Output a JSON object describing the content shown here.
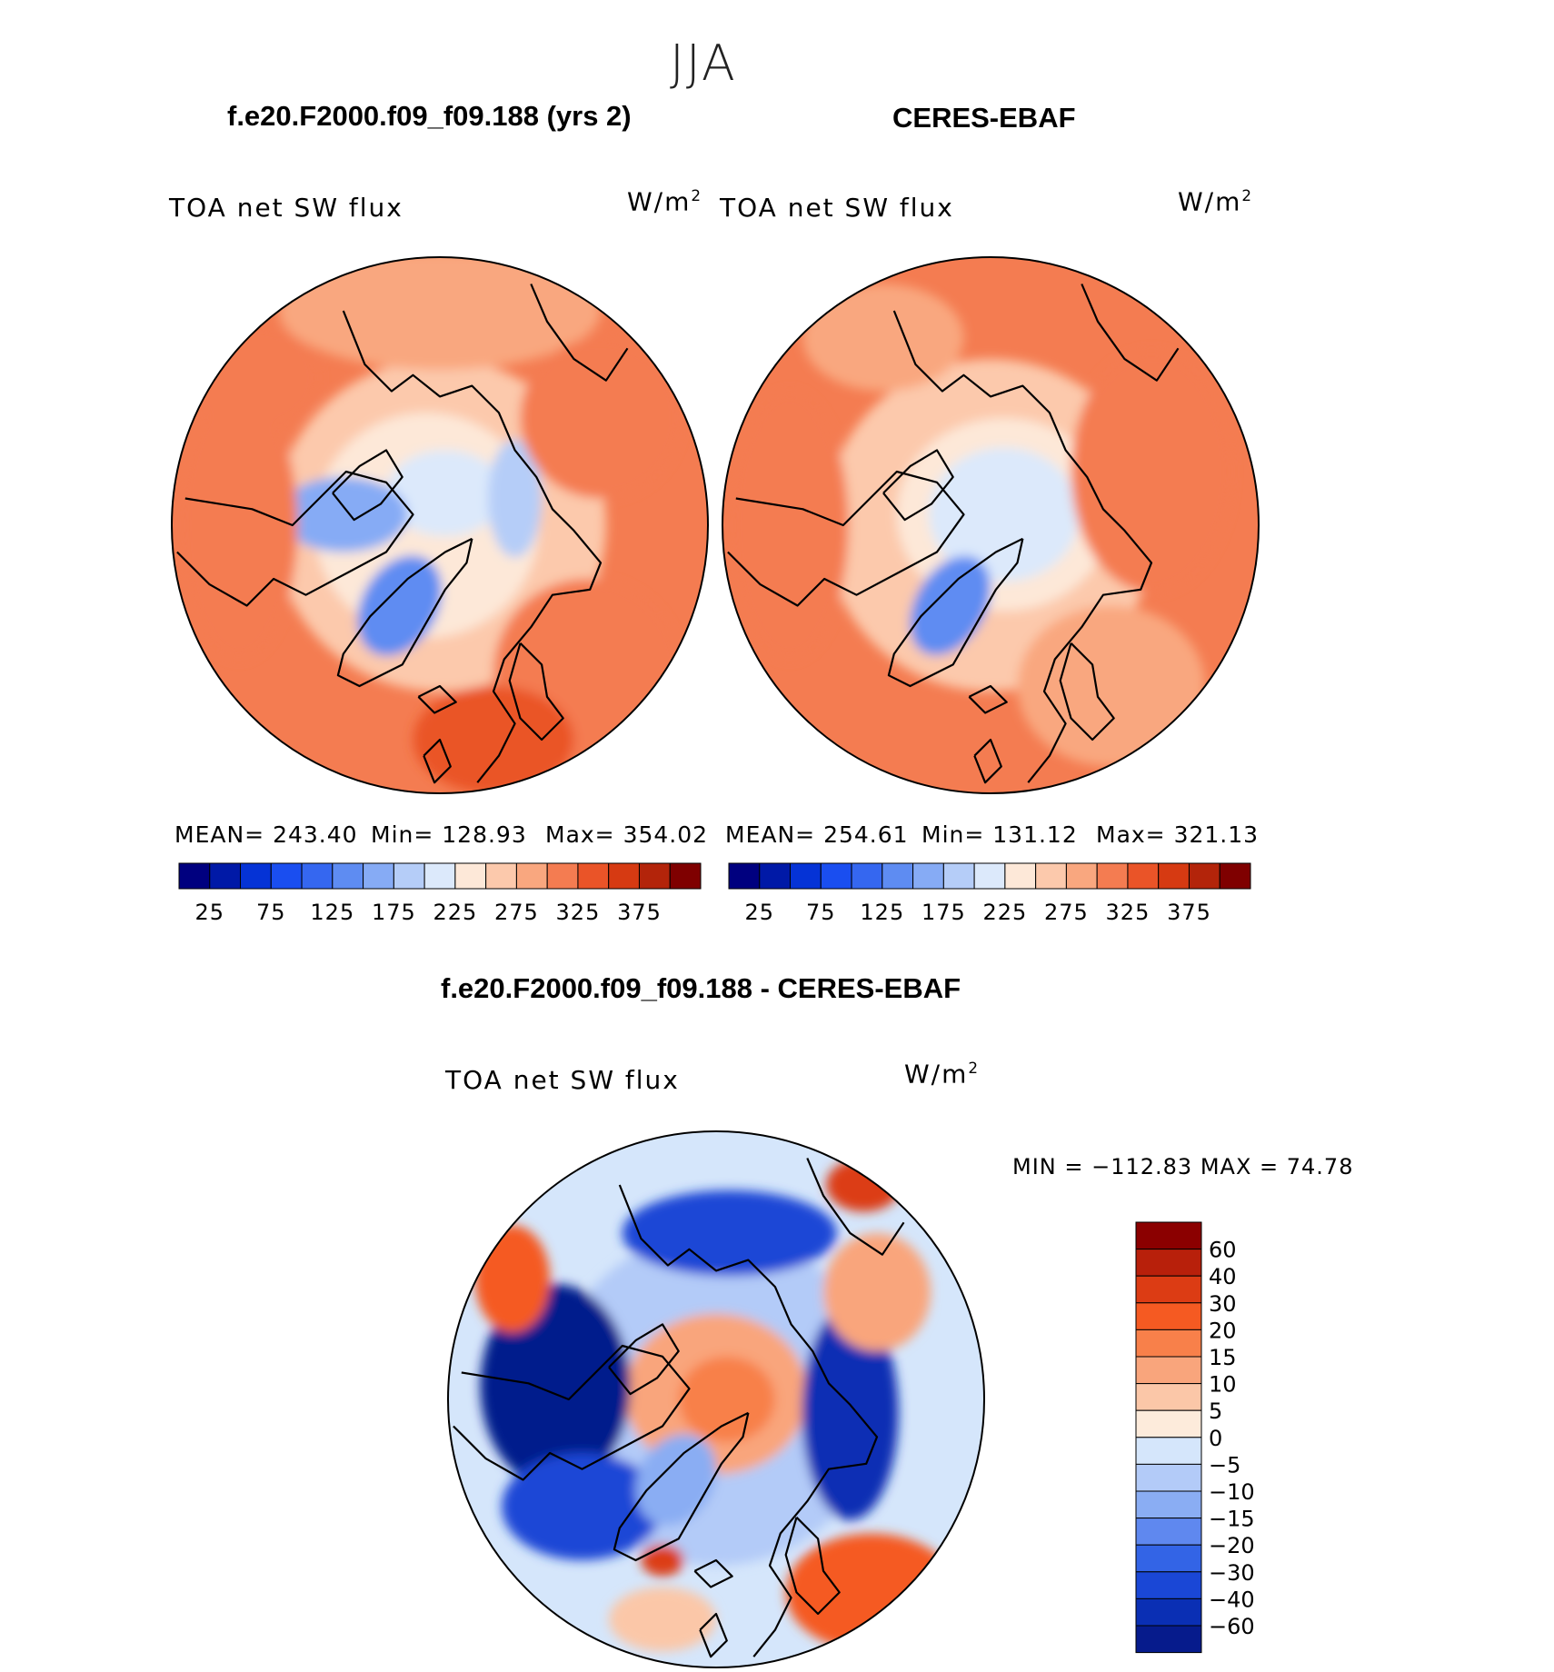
{
  "page": {
    "season": "JJA"
  },
  "panels": [
    {
      "id": "model",
      "title": "f.e20.F2000.f09_f09.188 (yrs 2)",
      "left_label": "TOA net SW flux",
      "units_base": "W/m",
      "units_exp": "2",
      "stats": {
        "mean_label": "MEAN= 243.40",
        "min_label": "Min= 128.93",
        "max_label": "Max= 354.02"
      }
    },
    {
      "id": "obs",
      "title": "CERES-EBAF",
      "left_label": "TOA net SW flux",
      "units_base": "W/m",
      "units_exp": "2",
      "stats": {
        "mean_label": "MEAN= 254.61",
        "min_label": "Min= 131.12",
        "max_label": "Max= 321.13"
      }
    },
    {
      "id": "diff",
      "title": "f.e20.F2000.f09_f09.188 - CERES-EBAF",
      "left_label": "TOA net SW flux",
      "units_base": "W/m",
      "units_exp": "2",
      "stats": {
        "minmax_label": "MIN = −112.83 MAX =   74.78"
      }
    }
  ],
  "chart_data": [
    {
      "type": "heatmap",
      "projection": "north-polar-stereographic",
      "title": "f.e20.F2000.f09_f09.188 (yrs 2)",
      "variable": "TOA net SW flux",
      "units": "W/m2",
      "mean": 243.4,
      "min": 128.93,
      "max": 354.02,
      "colorbar": {
        "orientation": "horizontal",
        "levels": [
          25,
          50,
          75,
          100,
          125,
          150,
          175,
          200,
          225,
          250,
          275,
          300,
          325,
          350,
          375
        ],
        "tick_labels": [
          "25",
          "75",
          "125",
          "175",
          "225",
          "275",
          "325",
          "375"
        ],
        "colors": [
          "#00007f",
          "#0019a7",
          "#0533d6",
          "#1a4ef0",
          "#3567f0",
          "#5e8cf2",
          "#86abf5",
          "#b5cdf8",
          "#dce9fb",
          "#fde8d8",
          "#fcc9ac",
          "#f9a77f",
          "#f47c51",
          "#ea5428",
          "#d63a12",
          "#b3240a",
          "#7f0000"
        ]
      }
    },
    {
      "type": "heatmap",
      "projection": "north-polar-stereographic",
      "title": "CERES-EBAF",
      "variable": "TOA net SW flux",
      "units": "W/m2",
      "mean": 254.61,
      "min": 131.12,
      "max": 321.13,
      "colorbar": {
        "orientation": "horizontal",
        "levels": [
          25,
          50,
          75,
          100,
          125,
          150,
          175,
          200,
          225,
          250,
          275,
          300,
          325,
          350,
          375
        ],
        "tick_labels": [
          "25",
          "75",
          "125",
          "175",
          "225",
          "275",
          "325",
          "375"
        ],
        "colors": [
          "#00007f",
          "#0019a7",
          "#0533d6",
          "#1a4ef0",
          "#3567f0",
          "#5e8cf2",
          "#86abf5",
          "#b5cdf8",
          "#dce9fb",
          "#fde8d8",
          "#fcc9ac",
          "#f9a77f",
          "#f47c51",
          "#ea5428",
          "#d63a12",
          "#b3240a",
          "#7f0000"
        ]
      }
    },
    {
      "type": "heatmap",
      "projection": "north-polar-stereographic",
      "title": "f.e20.F2000.f09_f09.188 - CERES-EBAF",
      "variable": "TOA net SW flux",
      "units": "W/m2",
      "min": -112.83,
      "max": 74.78,
      "colorbar": {
        "orientation": "vertical",
        "levels": [
          -60,
          -40,
          -30,
          -20,
          -15,
          -10,
          -5,
          0,
          5,
          10,
          15,
          20,
          30,
          40,
          60
        ],
        "tick_labels": [
          "60",
          "40",
          "30",
          "20",
          "15",
          "10",
          "5",
          "0",
          "−5",
          "−10",
          "−15",
          "−20",
          "−30",
          "−40",
          "−60"
        ],
        "colors_top_to_bottom": [
          "#8b0000",
          "#b8200b",
          "#dc3c14",
          "#f55a22",
          "#f8804a",
          "#f9a57c",
          "#fbc7a8",
          "#fdebdb",
          "#d5e6fb",
          "#b3cbf8",
          "#8aadf3",
          "#5f88ef",
          "#3364e6",
          "#1a47d6",
          "#0a2fb4",
          "#061b8c"
        ]
      }
    }
  ]
}
